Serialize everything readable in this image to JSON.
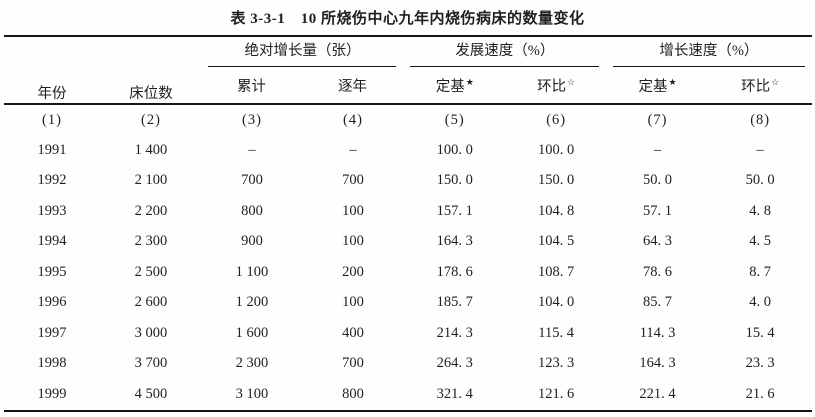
{
  "title": "表 3-3-1　10 所烧伤中心九年内烧伤病床的数量变化",
  "colors": {
    "text": "#1f1f1f",
    "rule": "#171717",
    "background": "#fffefd"
  },
  "table": {
    "header": {
      "year": "年份",
      "beds": "床位数",
      "groups": [
        {
          "label": "绝对增长量（张）",
          "subs": [
            {
              "text": "累计",
              "star": ""
            },
            {
              "text": "逐年",
              "star": ""
            }
          ]
        },
        {
          "label": "发展速度（%）",
          "subs": [
            {
              "text": "定基",
              "star": "★"
            },
            {
              "text": "环比",
              "star": "☆"
            }
          ]
        },
        {
          "label": "增长速度（%）",
          "subs": [
            {
              "text": "定基",
              "star": "★"
            },
            {
              "text": "环比",
              "star": "☆"
            }
          ]
        }
      ]
    },
    "col_numbers": [
      "(1)",
      "(2)",
      "(3)",
      "(4)",
      "(5)",
      "(6)",
      "(7)",
      "(8)"
    ],
    "rows": [
      [
        "1991",
        "1 400",
        "–",
        "–",
        "100. 0",
        "100. 0",
        "–",
        "–"
      ],
      [
        "1992",
        "2 100",
        "700",
        "700",
        "150. 0",
        "150. 0",
        "50. 0",
        "50. 0"
      ],
      [
        "1993",
        "2 200",
        "800",
        "100",
        "157. 1",
        "104. 8",
        "57. 1",
        "4. 8"
      ],
      [
        "1994",
        "2 300",
        "900",
        "100",
        "164. 3",
        "104. 5",
        "64. 3",
        "4. 5"
      ],
      [
        "1995",
        "2 500",
        "1 100",
        "200",
        "178. 6",
        "108. 7",
        "78. 6",
        "8. 7"
      ],
      [
        "1996",
        "2 600",
        "1 200",
        "100",
        "185. 7",
        "104. 0",
        "85. 7",
        "4. 0"
      ],
      [
        "1997",
        "3 000",
        "1 600",
        "400",
        "214. 3",
        "115. 4",
        "114. 3",
        "15. 4"
      ],
      [
        "1998",
        "3 700",
        "2 300",
        "700",
        "264. 3",
        "123. 3",
        "164. 3",
        "23. 3"
      ],
      [
        "1999",
        "4 500",
        "3 100",
        "800",
        "321. 4",
        "121. 6",
        "221. 4",
        "21. 6"
      ]
    ]
  },
  "chart_data": {
    "type": "table",
    "title": "表 3-3-1 10 所烧伤中心九年内烧伤病床的数量变化",
    "columns": [
      "年份",
      "床位数",
      "绝对增长量（张）累计",
      "绝对增长量（张）逐年",
      "发展速度（%）定基★",
      "发展速度（%）环比☆",
      "增长速度（%）定基★",
      "增长速度（%）环比☆"
    ],
    "rows": [
      [
        1991,
        1400,
        null,
        null,
        100.0,
        100.0,
        null,
        null
      ],
      [
        1992,
        2100,
        700,
        700,
        150.0,
        150.0,
        50.0,
        50.0
      ],
      [
        1993,
        2200,
        800,
        100,
        157.1,
        104.8,
        57.1,
        4.8
      ],
      [
        1994,
        2300,
        900,
        100,
        164.3,
        104.5,
        64.3,
        4.5
      ],
      [
        1995,
        2500,
        1100,
        200,
        178.6,
        108.7,
        78.6,
        8.7
      ],
      [
        1996,
        2600,
        1200,
        100,
        185.7,
        104.0,
        85.7,
        4.0
      ],
      [
        1997,
        3000,
        1600,
        400,
        214.3,
        115.4,
        114.3,
        15.4
      ],
      [
        1998,
        3700,
        2300,
        700,
        264.3,
        123.3,
        164.3,
        23.3
      ],
      [
        1999,
        4500,
        3100,
        800,
        321.4,
        121.6,
        221.4,
        21.6
      ]
    ]
  }
}
